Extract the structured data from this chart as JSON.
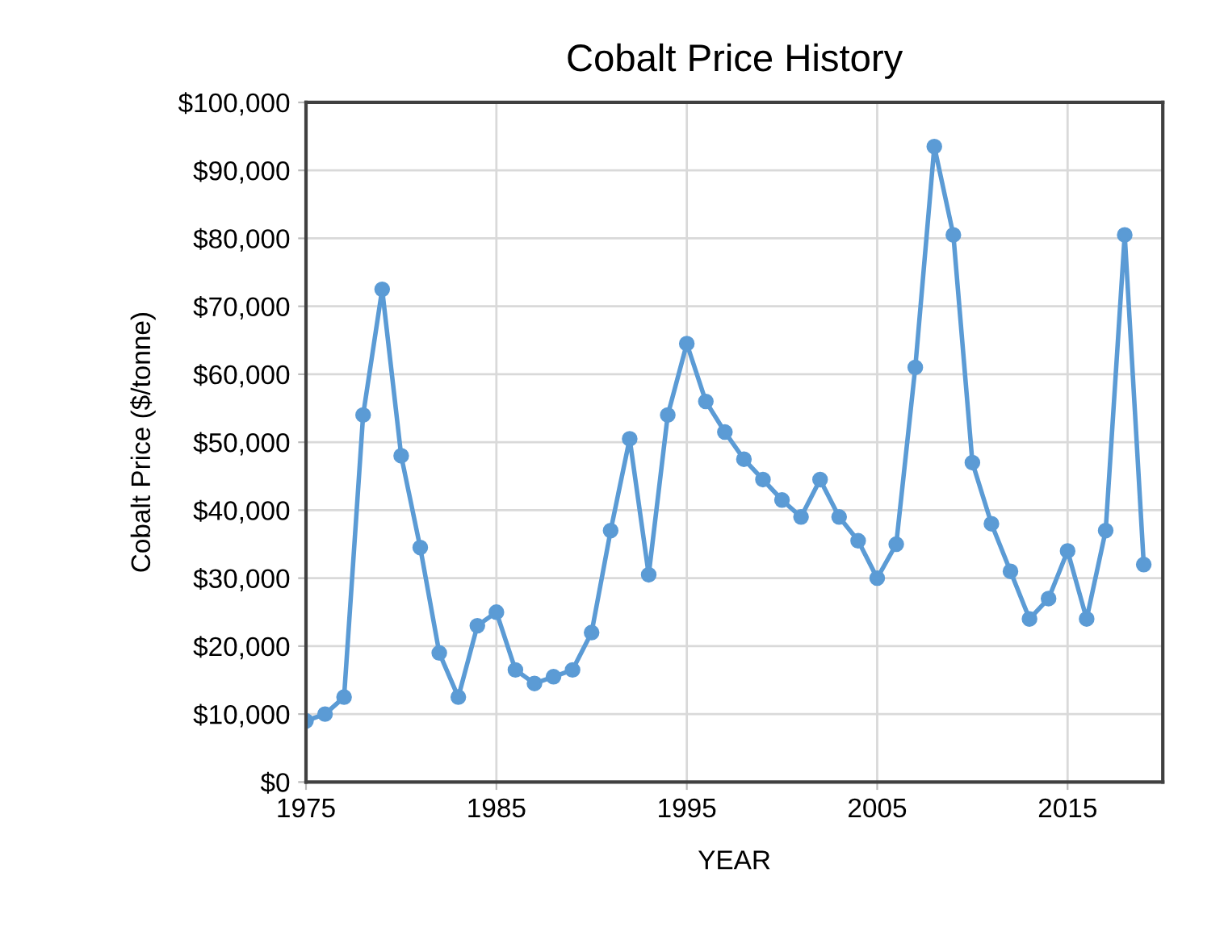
{
  "chart_data": {
    "type": "line",
    "title": "Cobalt Price History",
    "xlabel": "YEAR",
    "ylabel": "Cobalt Price ($/tonne)",
    "x": [
      1975,
      1976,
      1977,
      1978,
      1979,
      1980,
      1981,
      1982,
      1983,
      1984,
      1985,
      1986,
      1987,
      1988,
      1989,
      1990,
      1991,
      1992,
      1993,
      1994,
      1995,
      1996,
      1997,
      1998,
      1999,
      2000,
      2001,
      2002,
      2003,
      2004,
      2005,
      2006,
      2007,
      2008,
      2009,
      2010,
      2011,
      2012,
      2013,
      2014,
      2015,
      2016,
      2017,
      2018,
      2019
    ],
    "series": [
      {
        "color": "#5b9bd5",
        "values": [
          9000,
          10000,
          12500,
          54000,
          72500,
          48000,
          34500,
          19000,
          12500,
          23000,
          25000,
          16500,
          14500,
          15500,
          16500,
          22000,
          37000,
          50500,
          30500,
          54000,
          64500,
          56000,
          51500,
          47500,
          44500,
          41500,
          39000,
          44500,
          39000,
          35500,
          30000,
          35000,
          61000,
          93500,
          80500,
          47000,
          38000,
          31000,
          24000,
          27000,
          34000,
          24000,
          37000,
          80500,
          32000
        ]
      }
    ],
    "xlim": [
      1975,
      2020
    ],
    "xticks": [
      1975,
      1985,
      1995,
      2005,
      2015
    ],
    "ylim": [
      0,
      100000
    ],
    "yticks": [
      {
        "value": 0,
        "label": "$0"
      },
      {
        "value": 10000,
        "label": "$10,000"
      },
      {
        "value": 20000,
        "label": "$20,000"
      },
      {
        "value": 30000,
        "label": "$30,000"
      },
      {
        "value": 40000,
        "label": "$40,000"
      },
      {
        "value": 50000,
        "label": "$50,000"
      },
      {
        "value": 60000,
        "label": "$60,000"
      },
      {
        "value": 70000,
        "label": "$70,000"
      },
      {
        "value": 80000,
        "label": "$80,000"
      },
      {
        "value": 90000,
        "label": "$90,000"
      },
      {
        "value": 100000,
        "label": "$100,000"
      }
    ],
    "grid": true,
    "marker": "circle",
    "line_style": "solid",
    "legend": false
  }
}
